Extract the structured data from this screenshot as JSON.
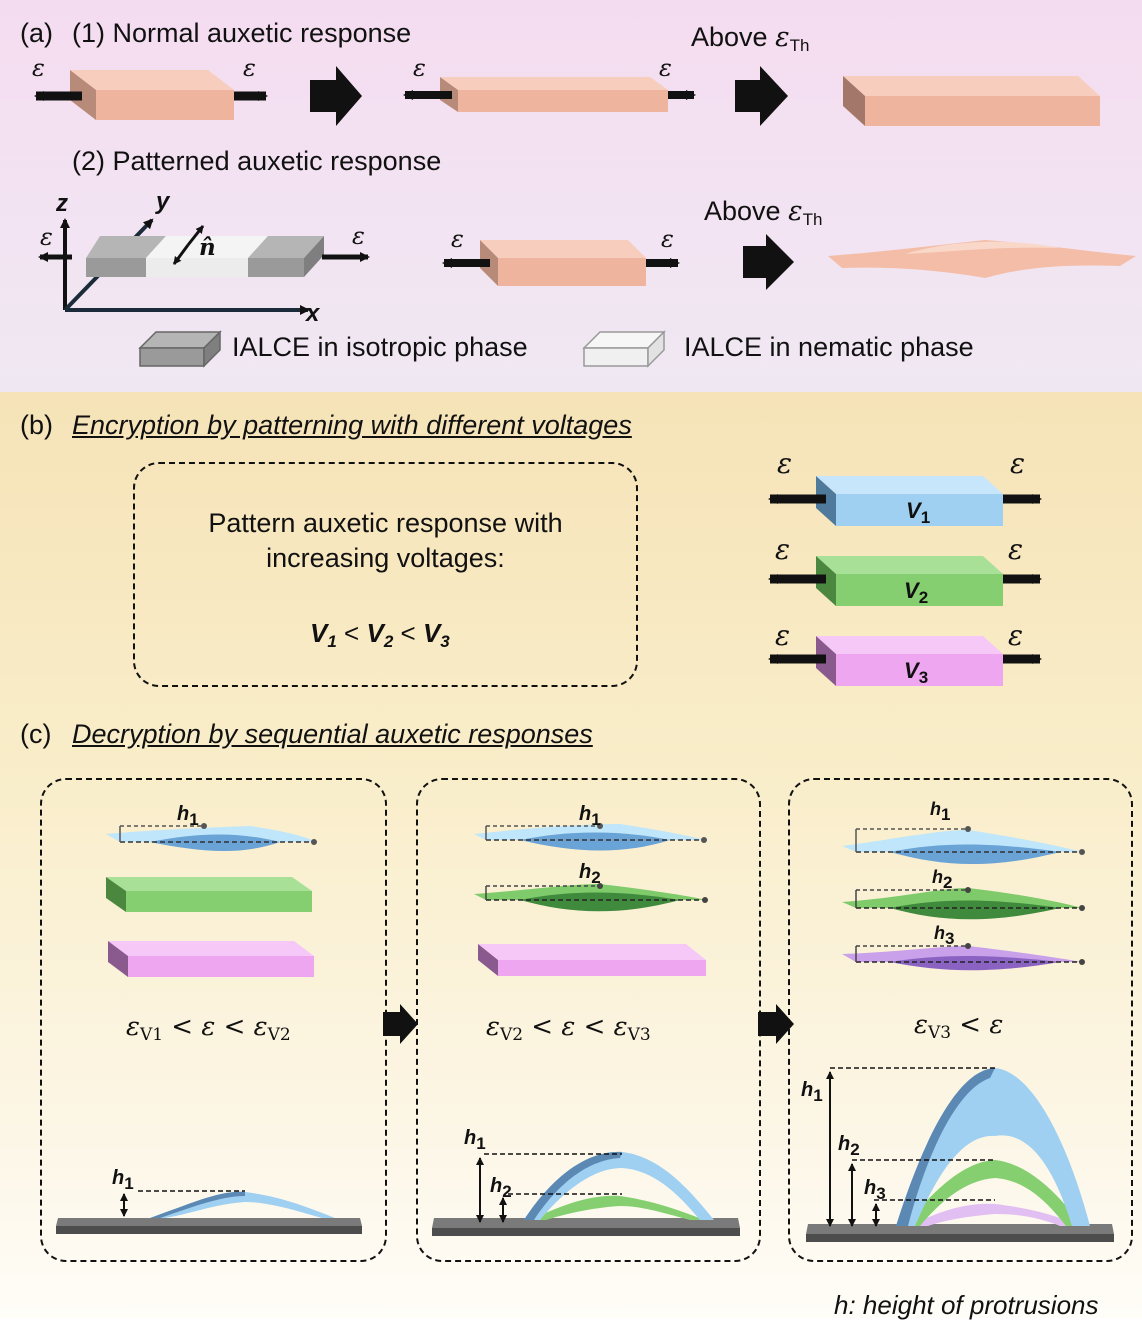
{
  "panel_a": {
    "label": "(a)",
    "row1_title": "(1) Normal auxetic response",
    "row2_title": "(2) Patterned auxetic response",
    "above_text": "Above",
    "strain_symbol": "ε",
    "threshold_sub": "Th",
    "axes": {
      "z": "z",
      "y": "y",
      "x": "x",
      "director": "n̂"
    },
    "legend": {
      "isotropic": "IALCE in isotropic phase",
      "nematic": "IALCE in nematic phase"
    }
  },
  "panel_b": {
    "label": "(b)",
    "title": "Encryption by patterning with different voltages",
    "box_line1": "Pattern auxetic response with",
    "box_line2": "increasing voltages:",
    "voltages": [
      {
        "symbol": "V",
        "sub": "1",
        "color": "#9fd0f2"
      },
      {
        "symbol": "V",
        "sub": "2",
        "color": "#85cf70"
      },
      {
        "symbol": "V",
        "sub": "3",
        "color": "#eda6ef"
      }
    ],
    "lt": "<"
  },
  "panel_c": {
    "label": "(c)",
    "title": "Decryption by sequential auxetic responses",
    "stages": [
      {
        "lo": "V1",
        "hi": "V2"
      },
      {
        "lo": "V2",
        "hi": "V3"
      },
      {
        "lo": "V3",
        "hi": ""
      }
    ],
    "h_symbol": "h",
    "footnote": "h: height of protrusions"
  },
  "colors": {
    "salmon": "#f2b8a2",
    "blue": "#9fd0f2",
    "green": "#85cf70",
    "pink": "#eda6ef",
    "gray": "#999999"
  }
}
